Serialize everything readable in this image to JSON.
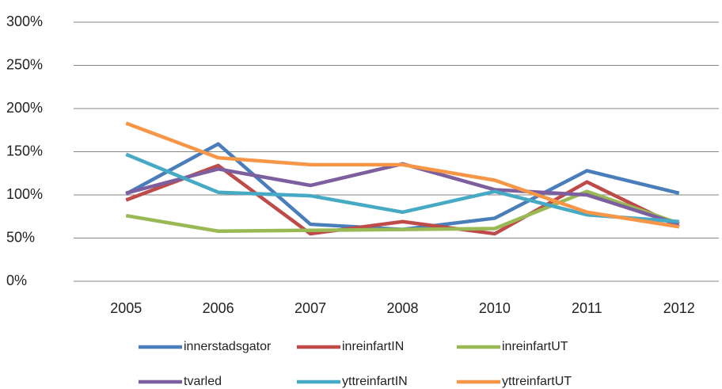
{
  "chart_data": {
    "type": "line",
    "categories": [
      "2005",
      "2006",
      "2007",
      "2008",
      "2010",
      "2011",
      "2012"
    ],
    "series": [
      {
        "name": "innerstadsgator",
        "color": "#4a7ebb",
        "values": [
          101,
          159,
          66,
          60,
          73,
          128,
          102
        ]
      },
      {
        "name": "inreinfartIN",
        "color": "#be4b48",
        "values": [
          94,
          134,
          55,
          69,
          55,
          115,
          63
        ]
      },
      {
        "name": "inreinfartUT",
        "color": "#98b954",
        "values": [
          76,
          58,
          59,
          60,
          61,
          104,
          67
        ]
      },
      {
        "name": "tvarled",
        "color": "#7d5fa0",
        "values": [
          102,
          130,
          111,
          136,
          106,
          100,
          66
        ]
      },
      {
        "name": "yttreinfartIN",
        "color": "#46aac5",
        "values": [
          147,
          103,
          99,
          80,
          104,
          77,
          69
        ]
      },
      {
        "name": "yttreinfartUT",
        "color": "#f79646",
        "values": [
          183,
          143,
          135,
          135,
          117,
          80,
          63
        ]
      }
    ],
    "ylim": [
      0,
      300
    ],
    "yticks": [
      {
        "value": 0,
        "label": "0%"
      },
      {
        "value": 50,
        "label": "50%"
      },
      {
        "value": 100,
        "label": "100%"
      },
      {
        "value": 150,
        "label": "150%"
      },
      {
        "value": 200,
        "label": "200%"
      },
      {
        "value": 250,
        "label": "250%"
      },
      {
        "value": 300,
        "label": "300%"
      }
    ],
    "grid": true,
    "legend": "bottom"
  }
}
